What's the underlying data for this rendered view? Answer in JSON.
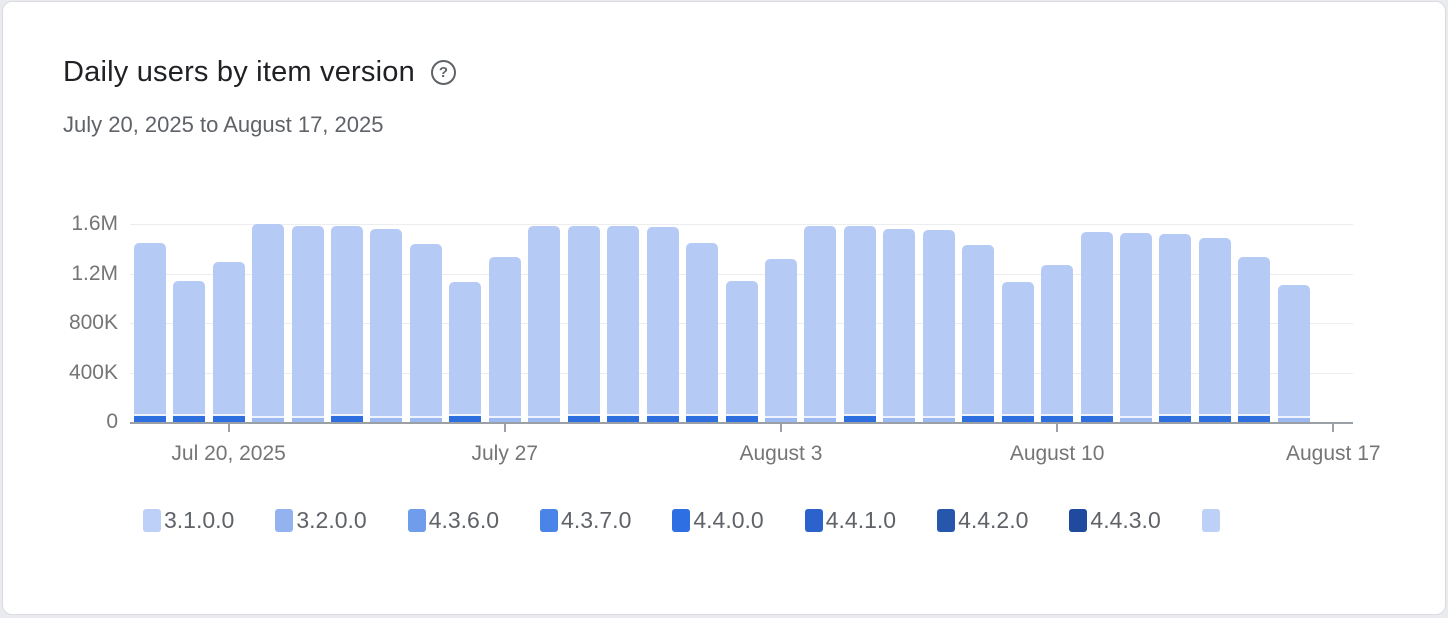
{
  "header": {
    "title": "Daily users by item version",
    "help_icon": "?",
    "date_range": "July 20, 2025 to August 17, 2025"
  },
  "chart_data": {
    "type": "bar",
    "stacked": true,
    "title": "Daily users by item version",
    "xlabel": "",
    "ylabel": "",
    "ylim": [
      0,
      1600000
    ],
    "y_ticks": [
      {
        "label": "1.6M",
        "value": 1600000
      },
      {
        "label": "1.2M",
        "value": 1200000
      },
      {
        "label": "800K",
        "value": 800000
      },
      {
        "label": "400K",
        "value": 400000
      },
      {
        "label": "0",
        "value": 0
      }
    ],
    "x_ticks": [
      {
        "label": "Jul 20, 2025",
        "slot": 3
      },
      {
        "label": "July 27",
        "slot": 10
      },
      {
        "label": "August 3",
        "slot": 17
      },
      {
        "label": "August 10",
        "slot": 24
      },
      {
        "label": "August 17",
        "slot": 31
      }
    ],
    "n_slots": 31,
    "grid": true,
    "legend_position": "bottom",
    "series_legend": [
      {
        "label": "3.1.0.0",
        "color": "#bdd0f7"
      },
      {
        "label": "3.2.0.0",
        "color": "#93b3f0"
      },
      {
        "label": "4.3.6.0",
        "color": "#6f9ceb"
      },
      {
        "label": "4.3.7.0",
        "color": "#4a84e8"
      },
      {
        "label": "4.4.0.0",
        "color": "#2e6fe4"
      },
      {
        "label": "4.4.1.0",
        "color": "#2b62cb"
      },
      {
        "label": "4.4.2.0",
        "color": "#2756ad"
      },
      {
        "label": "4.4.3.0",
        "color": "#1f4a9d"
      },
      {
        "label": "",
        "color": "#bdd0f7"
      }
    ],
    "colors": {
      "bar_body": "#b5caf4",
      "segment_gap": "#eef3fd",
      "bright": "#2e6fe0",
      "light": "#9db9f1"
    },
    "base_segment_values": {
      "bright": 46000,
      "light": 31000,
      "gap": 16000
    },
    "days": [
      {
        "date": "Jul 18",
        "total_users": 1450000,
        "base_segment": "bright"
      },
      {
        "date": "Jul 19",
        "total_users": 1140000,
        "base_segment": "bright"
      },
      {
        "date": "Jul 20",
        "total_users": 1290000,
        "base_segment": "bright"
      },
      {
        "date": "Jul 21",
        "total_users": 1600000,
        "base_segment": "light"
      },
      {
        "date": "Jul 22",
        "total_users": 1585000,
        "base_segment": "light"
      },
      {
        "date": "Jul 23",
        "total_users": 1585000,
        "base_segment": "bright"
      },
      {
        "date": "Jul 24",
        "total_users": 1560000,
        "base_segment": "light"
      },
      {
        "date": "Jul 25",
        "total_users": 1440000,
        "base_segment": "light"
      },
      {
        "date": "Jul 26",
        "total_users": 1130000,
        "base_segment": "bright"
      },
      {
        "date": "Jul 27",
        "total_users": 1330000,
        "base_segment": "light"
      },
      {
        "date": "Jul 28",
        "total_users": 1580000,
        "base_segment": "light"
      },
      {
        "date": "Jul 29",
        "total_users": 1580000,
        "base_segment": "bright"
      },
      {
        "date": "Jul 30",
        "total_users": 1580000,
        "base_segment": "bright"
      },
      {
        "date": "Jul 31",
        "total_users": 1575000,
        "base_segment": "bright"
      },
      {
        "date": "Aug 1",
        "total_users": 1450000,
        "base_segment": "bright"
      },
      {
        "date": "Aug 2",
        "total_users": 1140000,
        "base_segment": "bright"
      },
      {
        "date": "Aug 3",
        "total_users": 1320000,
        "base_segment": "light"
      },
      {
        "date": "Aug 4",
        "total_users": 1585000,
        "base_segment": "light"
      },
      {
        "date": "Aug 5",
        "total_users": 1580000,
        "base_segment": "bright"
      },
      {
        "date": "Aug 6",
        "total_users": 1560000,
        "base_segment": "light"
      },
      {
        "date": "Aug 7",
        "total_users": 1550000,
        "base_segment": "light"
      },
      {
        "date": "Aug 8",
        "total_users": 1430000,
        "base_segment": "bright"
      },
      {
        "date": "Aug 9",
        "total_users": 1130000,
        "base_segment": "bright"
      },
      {
        "date": "Aug 10",
        "total_users": 1270000,
        "base_segment": "bright"
      },
      {
        "date": "Aug 11",
        "total_users": 1535000,
        "base_segment": "bright"
      },
      {
        "date": "Aug 12",
        "total_users": 1530000,
        "base_segment": "light"
      },
      {
        "date": "Aug 13",
        "total_users": 1520000,
        "base_segment": "bright"
      },
      {
        "date": "Aug 14",
        "total_users": 1490000,
        "base_segment": "bright"
      },
      {
        "date": "Aug 15",
        "total_users": 1335000,
        "base_segment": "bright"
      },
      {
        "date": "Aug 16",
        "total_users": 1110000,
        "base_segment": "light"
      }
    ]
  }
}
